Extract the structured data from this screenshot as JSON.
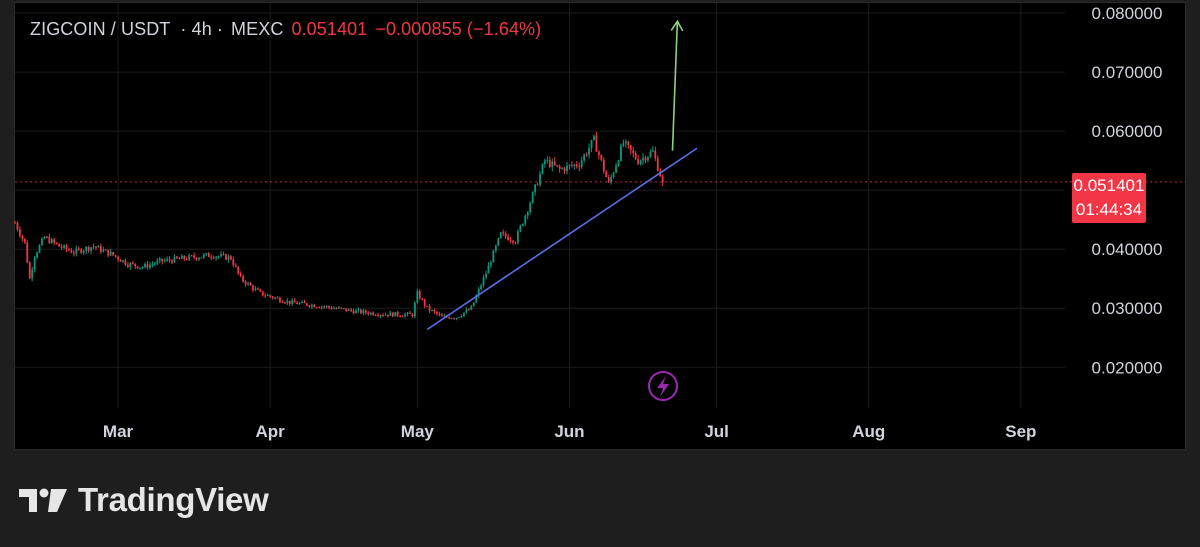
{
  "header": {
    "symbol": "ZIGCOIN / USDT",
    "interval": "· 4h ·",
    "exchange": "MEXC",
    "price": "0.051401",
    "change": "−0.000855 (−1.64%)"
  },
  "price_label": {
    "price": "0.051401",
    "countdown": "01:44:34"
  },
  "brand": {
    "name": "TradingView"
  },
  "colors": {
    "background": "#000000",
    "page": "#1e1e1e",
    "grid": "#1c1c1c",
    "axis_text": "#d1d4dc",
    "up": "#089981",
    "down": "#f23645",
    "trendline": "#5b6ee8",
    "arrow": "#8bd17c",
    "lightning_icon": "#9c27b0"
  },
  "chart_data": {
    "type": "candlestick",
    "x_axis": {
      "ticks": [
        "Mar",
        "Apr",
        "May",
        "Jun",
        "Jul",
        "Aug",
        "Sep"
      ],
      "tick_dates": [
        "2025-03-01",
        "2025-04-01",
        "2025-05-01",
        "2025-06-01",
        "2025-07-01",
        "2025-08-01",
        "2025-09-01"
      ],
      "range": [
        "2025-02-08",
        "2025-09-10"
      ]
    },
    "y_axis": {
      "ticks": [
        "0.080000",
        "0.070000",
        "0.060000",
        "0.040000",
        "0.030000",
        "0.020000"
      ],
      "tick_values": [
        0.08,
        0.07,
        0.06,
        0.04,
        0.03,
        0.02
      ],
      "range": [
        0.0131,
        0.0817
      ],
      "position": "right"
    },
    "grid": true,
    "last_price": 0.051401,
    "series": [
      {
        "type": "candles",
        "path": [
          [
            "2025-02-08",
            0.0445
          ],
          [
            "2025-02-10",
            0.041
          ],
          [
            "2025-02-11",
            0.035
          ],
          [
            "2025-02-12",
            0.039
          ],
          [
            "2025-02-14",
            0.042
          ],
          [
            "2025-02-17",
            0.0405
          ],
          [
            "2025-02-20",
            0.0395
          ],
          [
            "2025-02-24",
            0.0405
          ],
          [
            "2025-02-28",
            0.039
          ],
          [
            "2025-03-03",
            0.0375
          ],
          [
            "2025-03-06",
            0.037
          ],
          [
            "2025-03-10",
            0.038
          ],
          [
            "2025-03-15",
            0.0385
          ],
          [
            "2025-03-20",
            0.039
          ],
          [
            "2025-03-24",
            0.0385
          ],
          [
            "2025-03-26",
            0.035
          ],
          [
            "2025-03-30",
            0.0325
          ],
          [
            "2025-04-05",
            0.031
          ],
          [
            "2025-04-12",
            0.0303
          ],
          [
            "2025-04-18",
            0.0295
          ],
          [
            "2025-04-24",
            0.029
          ],
          [
            "2025-04-30",
            0.0289
          ],
          [
            "2025-05-01",
            0.0325
          ],
          [
            "2025-05-03",
            0.03
          ],
          [
            "2025-05-06",
            0.0285
          ],
          [
            "2025-05-09",
            0.0285
          ],
          [
            "2025-05-12",
            0.03
          ],
          [
            "2025-05-15",
            0.036
          ],
          [
            "2025-05-18",
            0.0425
          ],
          [
            "2025-05-21",
            0.0415
          ],
          [
            "2025-05-24",
            0.048
          ],
          [
            "2025-05-27",
            0.055
          ],
          [
            "2025-05-30",
            0.0535
          ],
          [
            "2025-06-03",
            0.0545
          ],
          [
            "2025-06-06",
            0.0585
          ],
          [
            "2025-06-09",
            0.051
          ],
          [
            "2025-06-12",
            0.058
          ],
          [
            "2025-06-15",
            0.055
          ],
          [
            "2025-06-18",
            0.0565
          ],
          [
            "2025-06-20",
            0.0514
          ]
        ]
      }
    ],
    "drawings": [
      {
        "type": "trendline",
        "from": [
          "2025-05-03",
          0.0264
        ],
        "to": [
          "2025-06-27",
          0.0571
        ]
      },
      {
        "type": "arrow",
        "from": [
          "2025-06-22",
          0.0567
        ],
        "to": [
          "2025-06-23",
          0.0786
        ]
      }
    ]
  }
}
